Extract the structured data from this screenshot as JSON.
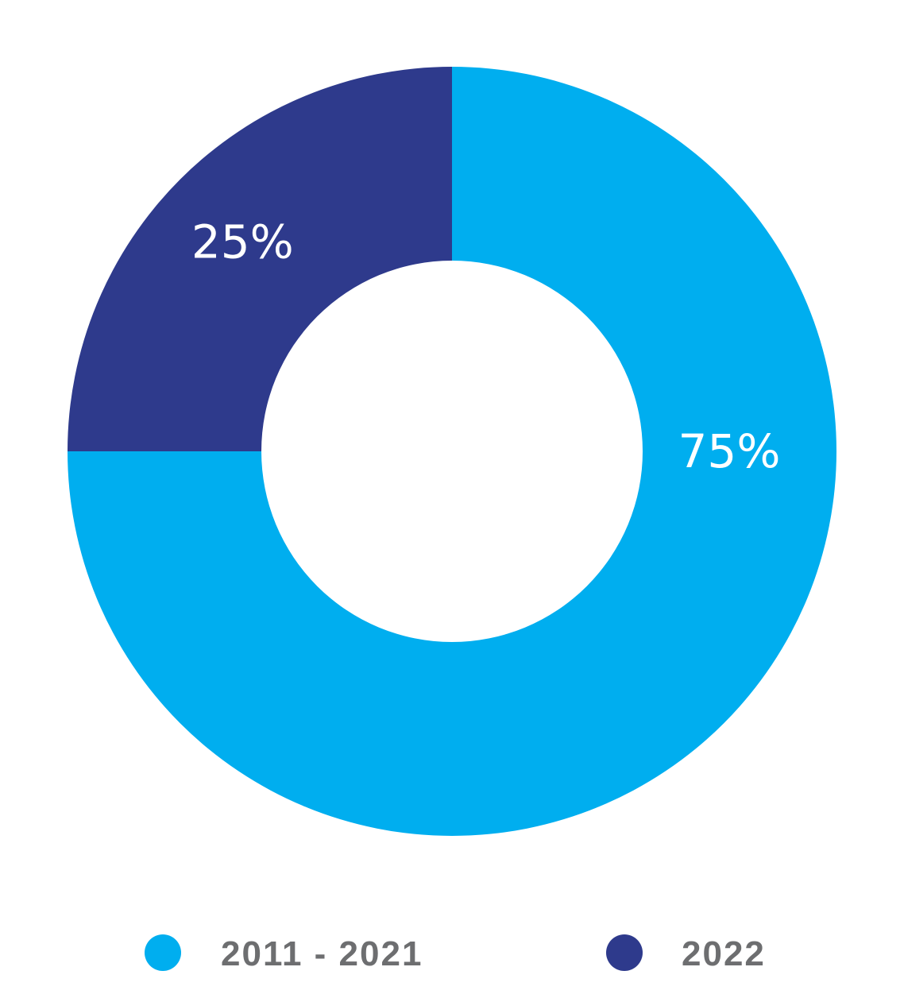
{
  "chart_data": {
    "type": "pie",
    "donut": true,
    "title": "",
    "categories": [
      "2011 - 2021",
      "2022"
    ],
    "values": [
      75,
      25
    ],
    "data_labels": [
      "75%",
      "25%"
    ],
    "colors": [
      "#00aeef",
      "#2e3a8c"
    ],
    "legend_position": "bottom",
    "start_angle_deg": 0,
    "direction": "clockwise"
  }
}
